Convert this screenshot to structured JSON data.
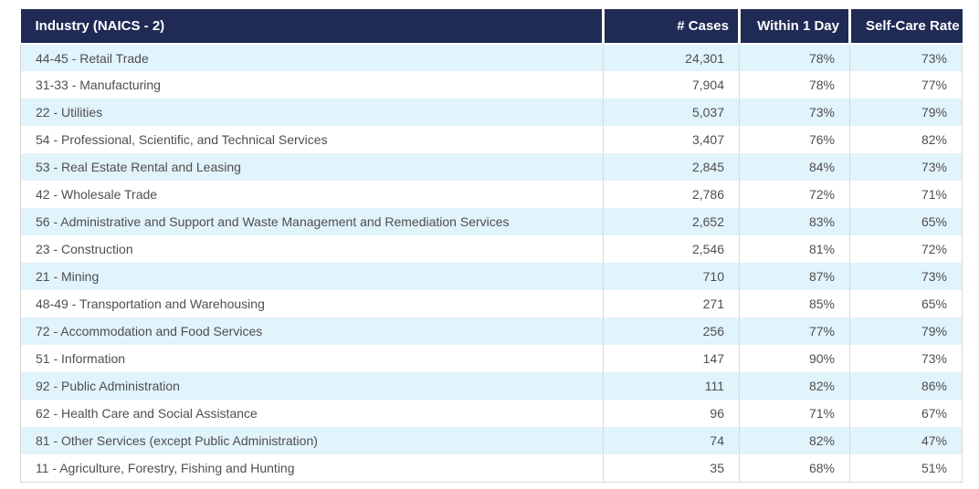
{
  "colors": {
    "header_bg": "#1F2A55",
    "header_text": "#FFFFFF",
    "row_alt_bg": "#E1F3FB",
    "row_bg": "#FFFFFF",
    "body_text": "#4F4F4F",
    "grid_border": "#D9D9D9"
  },
  "chart_data": {
    "type": "table",
    "title": "",
    "columns": [
      "Industry (NAICS - 2)",
      "# Cases",
      "Within 1 Day",
      "Self-Care Rate"
    ],
    "rows": [
      [
        "44-45 - Retail Trade",
        "24,301",
        "78%",
        "73%"
      ],
      [
        "31-33 - Manufacturing",
        "7,904",
        "78%",
        "77%"
      ],
      [
        "22 - Utilities",
        "5,037",
        "73%",
        "79%"
      ],
      [
        "54 - Professional, Scientific, and Technical Services",
        "3,407",
        "76%",
        "82%"
      ],
      [
        "53 - Real Estate Rental and Leasing",
        "2,845",
        "84%",
        "73%"
      ],
      [
        "42 - Wholesale Trade",
        "2,786",
        "72%",
        "71%"
      ],
      [
        "56 - Administrative and Support and Waste Management and Remediation Services",
        "2,652",
        "83%",
        "65%"
      ],
      [
        "23 - Construction",
        "2,546",
        "81%",
        "72%"
      ],
      [
        "21 - Mining",
        "710",
        "87%",
        "73%"
      ],
      [
        "48-49 - Transportation and Warehousing",
        "271",
        "85%",
        "65%"
      ],
      [
        "72 - Accommodation and Food Services",
        "256",
        "77%",
        "79%"
      ],
      [
        "51 - Information",
        "147",
        "90%",
        "73%"
      ],
      [
        "92 - Public Administration",
        "111",
        "82%",
        "86%"
      ],
      [
        "62 - Health Care and Social Assistance",
        "96",
        "71%",
        "67%"
      ],
      [
        "81 - Other Services (except Public Administration)",
        "74",
        "82%",
        "47%"
      ],
      [
        "11 - Agriculture, Forestry, Fishing and Hunting",
        "35",
        "68%",
        "51%"
      ]
    ],
    "numeric": {
      "cases": [
        24301,
        7904,
        5037,
        3407,
        2845,
        2786,
        2652,
        2546,
        710,
        271,
        256,
        147,
        111,
        96,
        74,
        35
      ],
      "within_1_day_pct": [
        78,
        78,
        73,
        76,
        84,
        72,
        83,
        81,
        87,
        85,
        77,
        90,
        82,
        71,
        82,
        68
      ],
      "self_care_rate_pct": [
        73,
        77,
        79,
        82,
        73,
        71,
        65,
        72,
        73,
        65,
        79,
        73,
        86,
        67,
        47,
        51
      ]
    }
  }
}
